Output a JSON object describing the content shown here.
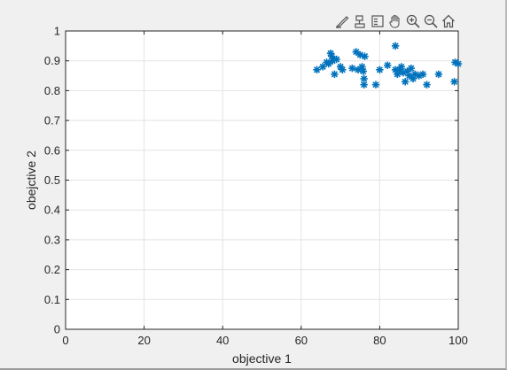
{
  "toolbar": {
    "buttons": [
      {
        "icon": "brush-icon",
        "label": "Brush"
      },
      {
        "icon": "data-tips-icon",
        "label": "Data Tips"
      },
      {
        "icon": "legend-icon",
        "label": "Legend"
      },
      {
        "icon": "pan-icon",
        "label": "Pan"
      },
      {
        "icon": "zoom-in-icon",
        "label": "Zoom In"
      },
      {
        "icon": "zoom-out-icon",
        "label": "Zoom Out"
      },
      {
        "icon": "home-icon",
        "label": "Restore View"
      }
    ]
  },
  "colors": {
    "marker": "#0072bd",
    "axes_background": "#ffffff",
    "figure_background": "#f0f0f0",
    "grid": "#e3e3e3",
    "axis": "#262626"
  },
  "chart_data": {
    "type": "scatter",
    "marker": "asterisk",
    "xlabel": "objective 1",
    "ylabel": "obejctive 2",
    "xlim": [
      0,
      100
    ],
    "ylim": [
      0,
      1
    ],
    "xticks": [
      "0",
      "20",
      "40",
      "60",
      "80",
      "100"
    ],
    "yticks": [
      "0",
      "0.1",
      "0.2",
      "0.3",
      "0.4",
      "0.5",
      "0.6",
      "0.7",
      "0.8",
      "0.9",
      "1"
    ],
    "grid": true,
    "points": [
      [
        64,
        0.87
      ],
      [
        65.5,
        0.88
      ],
      [
        66.5,
        0.895
      ],
      [
        67,
        0.89
      ],
      [
        67.5,
        0.925
      ],
      [
        67.8,
        0.915
      ],
      [
        68,
        0.9
      ],
      [
        68.5,
        0.855
      ],
      [
        69,
        0.905
      ],
      [
        70,
        0.88
      ],
      [
        70.5,
        0.87
      ],
      [
        73,
        0.875
      ],
      [
        74,
        0.93
      ],
      [
        74.5,
        0.87
      ],
      [
        75,
        0.92
      ],
      [
        75.5,
        0.88
      ],
      [
        75.8,
        0.865
      ],
      [
        76,
        0.84
      ],
      [
        76,
        0.82
      ],
      [
        76.2,
        0.915
      ],
      [
        79,
        0.82
      ],
      [
        80,
        0.87
      ],
      [
        82,
        0.885
      ],
      [
        84,
        0.95
      ],
      [
        84,
        0.87
      ],
      [
        84.5,
        0.855
      ],
      [
        85,
        0.87
      ],
      [
        85.5,
        0.88
      ],
      [
        86,
        0.86
      ],
      [
        86.5,
        0.83
      ],
      [
        87,
        0.865
      ],
      [
        87.5,
        0.85
      ],
      [
        88,
        0.875
      ],
      [
        88.5,
        0.84
      ],
      [
        89,
        0.855
      ],
      [
        90,
        0.85
      ],
      [
        91,
        0.855
      ],
      [
        92,
        0.82
      ],
      [
        95,
        0.855
      ],
      [
        99,
        0.83
      ],
      [
        99.2,
        0.895
      ],
      [
        100,
        0.89
      ]
    ]
  }
}
